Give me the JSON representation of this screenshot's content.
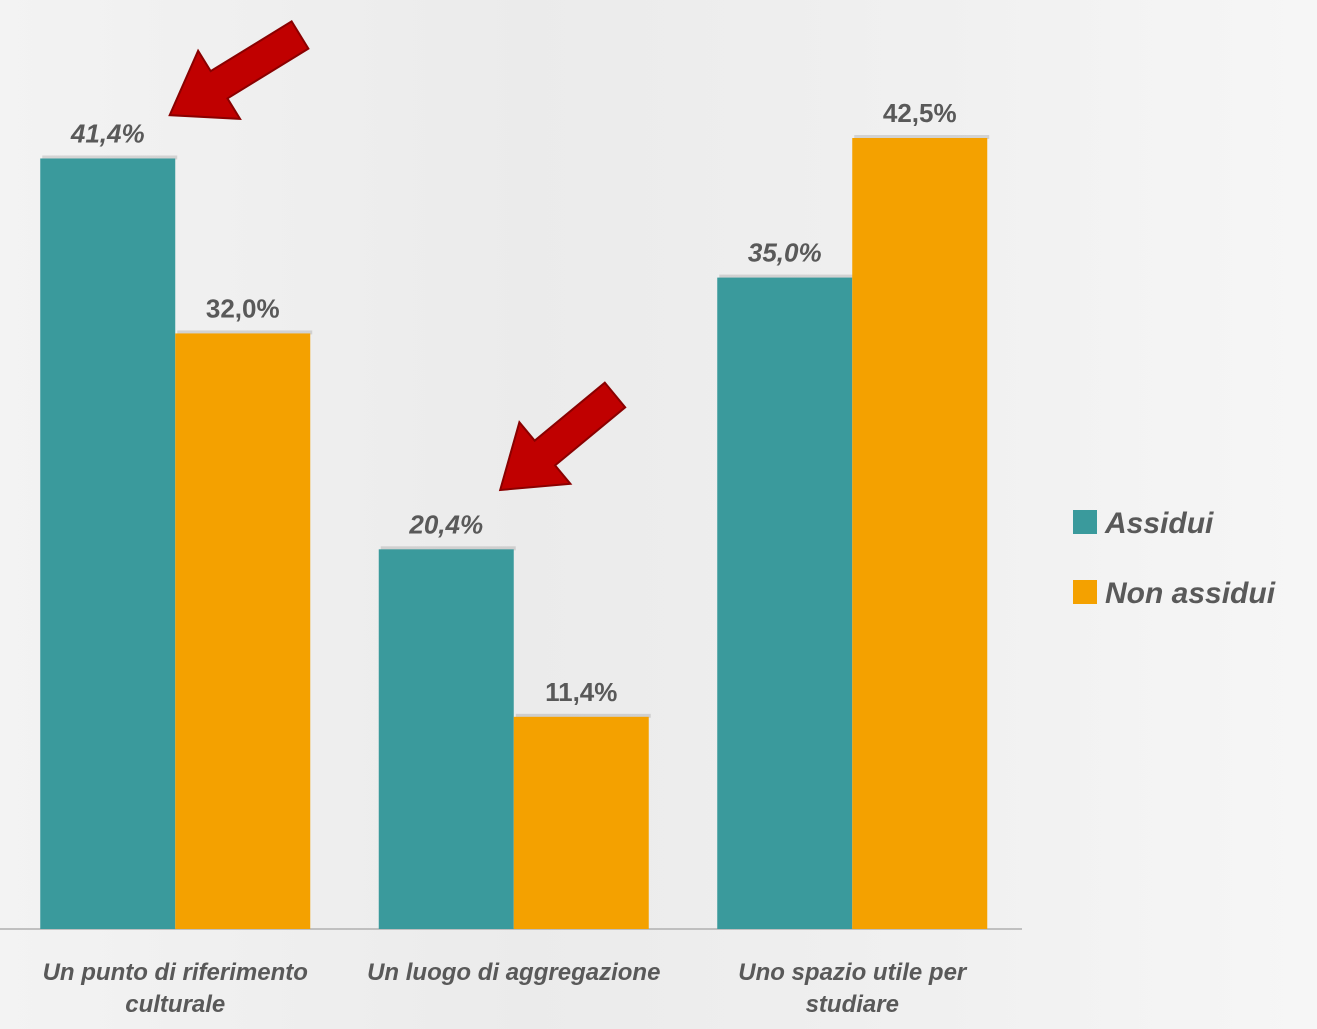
{
  "chart_data": {
    "type": "bar",
    "categories": [
      "Un punto di riferimento culturale",
      "Un luogo di aggregazione",
      "Uno spazio utile per studiare"
    ],
    "series": [
      {
        "name": "Assidui",
        "color": "#3a9a9c",
        "values": [
          41.4,
          20.4,
          35.0
        ],
        "value_labels": [
          "41,4%",
          "20,4%",
          "35,0%"
        ]
      },
      {
        "name": "Non assidui",
        "color": "#f4a100",
        "values": [
          32.0,
          11.4,
          42.5
        ],
        "value_labels": [
          "32,0%",
          "11,4%",
          "42,5%"
        ]
      }
    ],
    "legend": "right"
  }
}
